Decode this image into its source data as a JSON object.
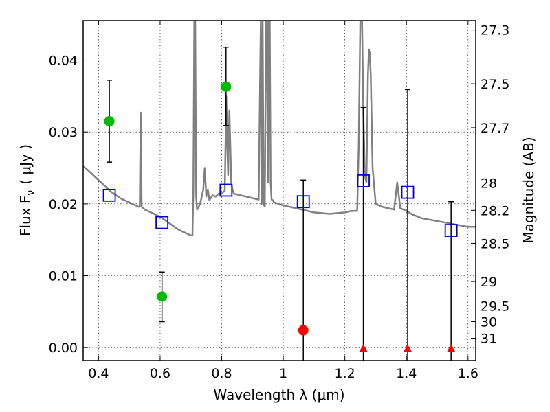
{
  "chart_data": {
    "type": "scatter",
    "xlabel": "Wavelength  λ (μm)",
    "ylabel": "Flux  F",
    "ylabel_subscript": "ν",
    "ylabel_unit": "( μJy )",
    "y2label": "Magnitude (AB)",
    "xlim": [
      0.35,
      1.625
    ],
    "ylim": [
      -0.0018,
      0.0455
    ],
    "grid": true,
    "x_ticks": [
      {
        "value": 0.4,
        "label": "0.4"
      },
      {
        "value": 0.6,
        "label": "0.6"
      },
      {
        "value": 0.8,
        "label": "0.8"
      },
      {
        "value": 1.0,
        "label": "1"
      },
      {
        "value": 1.2,
        "label": "1.2"
      },
      {
        "value": 1.4,
        "label": "1.4"
      },
      {
        "value": 1.6,
        "label": "1.6"
      }
    ],
    "y_ticks": [
      {
        "value": 0.0,
        "label": "0.00"
      },
      {
        "value": 0.01,
        "label": "0.01"
      },
      {
        "value": 0.02,
        "label": "0.02"
      },
      {
        "value": 0.03,
        "label": "0.03"
      },
      {
        "value": 0.04,
        "label": "0.04"
      }
    ],
    "y2_ticks": [
      {
        "flux": 0.0442,
        "label": "27.3"
      },
      {
        "flux": 0.0367,
        "label": "27.5"
      },
      {
        "flux": 0.0306,
        "label": "27.7"
      },
      {
        "flux": 0.0229,
        "label": "28"
      },
      {
        "flux": 0.0191,
        "label": "28.2"
      },
      {
        "flux": 0.0145,
        "label": "28.5"
      },
      {
        "flux": 0.0092,
        "label": "29"
      },
      {
        "flux": 0.0058,
        "label": "29.5"
      },
      {
        "flux": 0.0036,
        "label": "30"
      },
      {
        "flux": 0.0013,
        "label": "31"
      }
    ],
    "detections": {
      "color": "#00bb00",
      "points": [
        {
          "x": 0.435,
          "y": 0.0315,
          "err_low": 0.0258,
          "err_high": 0.0372
        },
        {
          "x": 0.606,
          "y": 0.0071,
          "err_low": 0.0036,
          "err_high": 0.0105
        },
        {
          "x": 0.814,
          "y": 0.0363,
          "err_low": 0.0309,
          "err_high": 0.0418
        }
      ]
    },
    "weak_detections": {
      "color": "#ff0000",
      "points": [
        {
          "x": 1.065,
          "y": 0.0024,
          "err_low": -0.0018,
          "err_high": 0.0233
        }
      ]
    },
    "upper_limits": {
      "color": "#ff0000",
      "points": [
        {
          "x": 1.26,
          "y": -0.0002,
          "err_low": -0.0018,
          "err_high": 0.0334
        },
        {
          "x": 1.404,
          "y": -0.0002,
          "err_low": -0.0018,
          "err_high": 0.0359
        },
        {
          "x": 1.545,
          "y": -0.0002,
          "err_low": -0.0018,
          "err_high": 0.0203
        }
      ]
    },
    "model_photometry": {
      "color": "#0000cc",
      "points": [
        {
          "x": 0.435,
          "y": 0.0212
        },
        {
          "x": 0.606,
          "y": 0.0174
        },
        {
          "x": 0.814,
          "y": 0.0219
        },
        {
          "x": 1.065,
          "y": 0.0203
        },
        {
          "x": 1.26,
          "y": 0.0232
        },
        {
          "x": 1.404,
          "y": 0.0216
        },
        {
          "x": 1.545,
          "y": 0.0163
        }
      ]
    },
    "model_spectrum": {
      "color": "#808080",
      "x": [
        0.35,
        0.36,
        0.37,
        0.38,
        0.39,
        0.4,
        0.41,
        0.42,
        0.43,
        0.44,
        0.45,
        0.46,
        0.47,
        0.48,
        0.49,
        0.5,
        0.51,
        0.52,
        0.53,
        0.534,
        0.537,
        0.54,
        0.545,
        0.55,
        0.56,
        0.57,
        0.58,
        0.59,
        0.6,
        0.61,
        0.62,
        0.63,
        0.64,
        0.65,
        0.66,
        0.67,
        0.68,
        0.69,
        0.7,
        0.705,
        0.708,
        0.711,
        0.714,
        0.717,
        0.72,
        0.73,
        0.74,
        0.745,
        0.75,
        0.755,
        0.76,
        0.77,
        0.78,
        0.79,
        0.8,
        0.81,
        0.815,
        0.818,
        0.821,
        0.825,
        0.828,
        0.831,
        0.835,
        0.84,
        0.86,
        0.88,
        0.9,
        0.92,
        0.927,
        0.93,
        0.933,
        0.936,
        0.94,
        0.944,
        0.947,
        0.95,
        0.953,
        0.956,
        0.959,
        0.962,
        0.966,
        0.97,
        1.0,
        1.05,
        1.1,
        1.15,
        1.2,
        1.22,
        1.24,
        1.245,
        1.25,
        1.253,
        1.256,
        1.26,
        1.265,
        1.27,
        1.275,
        1.278,
        1.281,
        1.284,
        1.29,
        1.3,
        1.32,
        1.34,
        1.36,
        1.37,
        1.38,
        1.4,
        1.42,
        1.45,
        1.5,
        1.55,
        1.6,
        1.625
      ],
      "y": [
        0.0252,
        0.0249,
        0.0245,
        0.0241,
        0.0237,
        0.0233,
        0.0229,
        0.0225,
        0.0221,
        0.0217,
        0.0214,
        0.0211,
        0.0208,
        0.0206,
        0.0204,
        0.0202,
        0.02,
        0.0198,
        0.0196,
        0.0196,
        0.0327,
        0.0196,
        0.0194,
        0.0192,
        0.019,
        0.0188,
        0.0186,
        0.0184,
        0.0182,
        0.0179,
        0.0176,
        0.0173,
        0.017,
        0.0167,
        0.0164,
        0.0162,
        0.016,
        0.0158,
        0.0156,
        0.0156,
        0.022,
        0.0455,
        0.0455,
        0.021,
        0.0192,
        0.02,
        0.022,
        0.025,
        0.021,
        0.022,
        0.0205,
        0.0212,
        0.021,
        0.0214,
        0.0215,
        0.0218,
        0.035,
        0.028,
        0.024,
        0.033,
        0.028,
        0.023,
        0.022,
        0.0214,
        0.0212,
        0.021,
        0.0208,
        0.0206,
        0.0455,
        0.02,
        0.0455,
        0.02,
        0.0196,
        0.0455,
        0.0455,
        0.023,
        0.0455,
        0.0455,
        0.023,
        0.0206,
        0.0205,
        0.0202,
        0.0198,
        0.0193,
        0.0188,
        0.0186,
        0.0188,
        0.019,
        0.019,
        0.028,
        0.0455,
        0.0455,
        0.0455,
        0.033,
        0.024,
        0.023,
        0.038,
        0.0415,
        0.041,
        0.038,
        0.025,
        0.02,
        0.0196,
        0.0194,
        0.0192,
        0.023,
        0.0194,
        0.019,
        0.0185,
        0.018,
        0.0176,
        0.0172,
        0.0168,
        0.0168
      ]
    }
  }
}
